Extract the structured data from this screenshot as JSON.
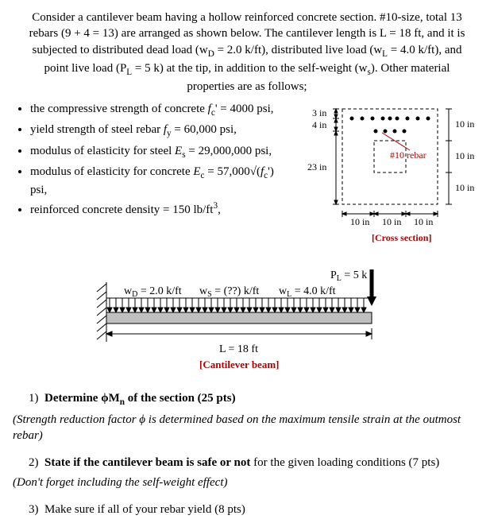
{
  "intro": {
    "line1": "Consider a cantilever beam having a hollow reinforced concrete section. #10-size, total 13",
    "line2": "rebars (9 + 4 = 13) are arranged as shown below. The cantilever length is L = 18 ft, and it is",
    "line3": "subjected to distributed dead load (w",
    "line3_sub": "D",
    "line3_cont": " = 2.0 k/ft), distributed live load (w",
    "line3_sub2": "L",
    "line3_cont2": " = 4.0 k/ft), and",
    "line4_a": "point live load (P",
    "line4_sub": "L",
    "line4_b": " = 5 k) at the tip, in addition to the self-weight (w",
    "line4_sub2": "s",
    "line4_c": "). Other material",
    "line5": "properties are as follows;"
  },
  "props": {
    "p1_a": "the compressive strength of concrete ",
    "p1_var": "f",
    "p1_sub": "c",
    "p1_b": "' = 4000 psi,",
    "p2_a": "yield strength of steel rebar ",
    "p2_var": "f",
    "p2_sub": "y",
    "p2_b": " = 60,000 psi,",
    "p3_a": "modulus of elasticity for steel ",
    "p3_var": "E",
    "p3_sub": "s",
    "p3_b": " = 29,000,000 psi,",
    "p4_a": "modulus of elasticity for concrete ",
    "p4_var": "E",
    "p4_sub": "c",
    "p4_b": " = 57,000√(",
    "p4_var2": "f",
    "p4_sub2": "c",
    "p4_c": "')  psi,",
    "p5_a": "reinforced concrete density = 150 lb/ft",
    "p5_sup": "3",
    "p5_b": ","
  },
  "cross_section": {
    "d_top": "3 in",
    "d_second": "4 in",
    "d_body": "23 in",
    "r1": "10 in",
    "r2": "10 in",
    "r3": "10 in",
    "b1": "10 in",
    "b2": "10 in",
    "b3": "10 in",
    "rebar_label": "#10 rebar",
    "caption": "[Cross section]"
  },
  "beam": {
    "pl": "P",
    "pl_sub": "L",
    "pl_val": " = 5 k",
    "wd": "w",
    "wd_sub": "D",
    "wd_val": " = 2.0 k/ft",
    "ws": "w",
    "ws_sub": "S",
    "ws_val": " = (??) k/ft",
    "wl": "w",
    "wl_sub": "L",
    "wl_val": " = 4.0 k/ft",
    "length": "L = 18 ft",
    "caption": "[Cantilever beam]"
  },
  "q1": {
    "num": "1)",
    "text_a": "Determine ",
    "sym": "ϕM",
    "sub": "n",
    "text_b": " of the section (25 pts)"
  },
  "q1_note": "(Strength reduction factor ϕ is determined based on the maximum tensile strain at the outmost rebar)",
  "q2": {
    "num": "2)",
    "text": "State if the cantilever beam is safe or not",
    "tail": " for the given loading conditions (7 pts)"
  },
  "q2_note": "(Don't forget including the self-weight effect)",
  "q3": {
    "num": "3)",
    "text": "Make sure if all of your rebar yield (8 pts)"
  },
  "colors": {
    "outline": "#000000",
    "hatch": "#000000",
    "accent": "#b00000",
    "beam_fill": "#bfbfbf"
  }
}
